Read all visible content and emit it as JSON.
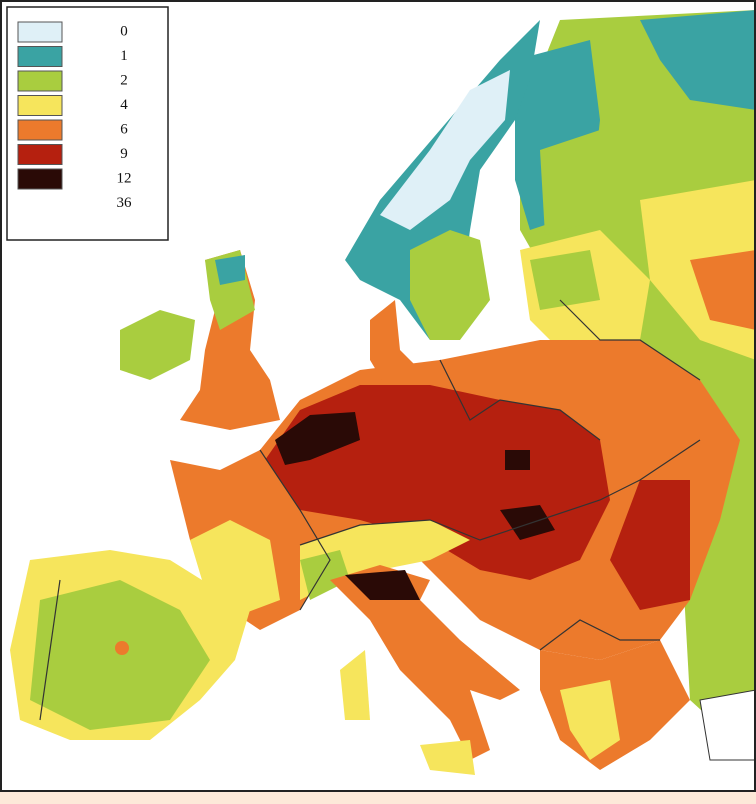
{
  "legend": {
    "items": [
      {
        "label": 0,
        "color": "#dff0f7"
      },
      {
        "label": 1,
        "color": "#3aa3a3"
      },
      {
        "label": 2,
        "color": "#a9cd3f"
      },
      {
        "label": 4,
        "color": "#f6e55c"
      },
      {
        "label": 6,
        "color": "#ec7a2c"
      },
      {
        "label": 9,
        "color": "#b5200f"
      },
      {
        "label": 12,
        "color": "#2a0a06"
      },
      {
        "label": 36,
        "color": null
      }
    ]
  }
}
